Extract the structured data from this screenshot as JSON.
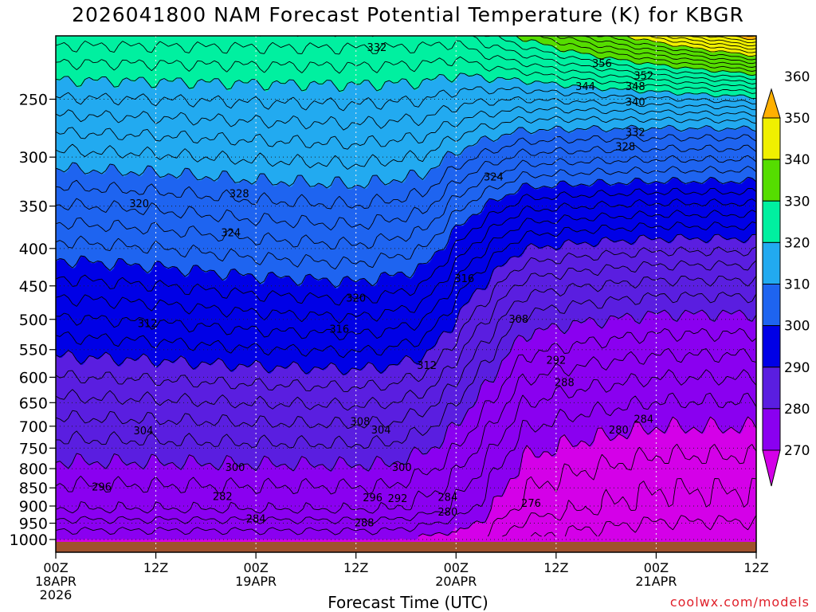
{
  "title": "2026041800 NAM Forecast Potential Temperature (K) for KBGR",
  "credit": "coolwx.com/models",
  "chart_data": {
    "type": "heatmap",
    "title": "2026041800 NAM Forecast Potential Temperature (K) for KBGR",
    "xlabel": "Forecast Time (UTC)",
    "ylabel": "",
    "x_ticks": [
      {
        "hour": 0,
        "labels": [
          "00Z",
          "18APR",
          "2026"
        ]
      },
      {
        "hour": 12,
        "labels": [
          "12Z"
        ]
      },
      {
        "hour": 24,
        "labels": [
          "00Z",
          "19APR"
        ]
      },
      {
        "hour": 36,
        "labels": [
          "12Z"
        ]
      },
      {
        "hour": 48,
        "labels": [
          "00Z",
          "20APR"
        ]
      },
      {
        "hour": 60,
        "labels": [
          "12Z"
        ]
      },
      {
        "hour": 72,
        "labels": [
          "00Z",
          "21APR"
        ]
      },
      {
        "hour": 84,
        "labels": [
          "12Z"
        ]
      }
    ],
    "xlim": [
      0,
      84
    ],
    "y_ticks": [
      250,
      300,
      350,
      400,
      450,
      500,
      550,
      600,
      650,
      700,
      750,
      800,
      850,
      900,
      950,
      1000
    ],
    "ylim": [
      1010,
      200
    ],
    "colorbar": {
      "levels": [
        270,
        280,
        290,
        300,
        310,
        320,
        330,
        340,
        350,
        360
      ],
      "colors": [
        "#d400e8",
        "#8a00f0",
        "#5a1ee0",
        "#0000e6",
        "#1e64f0",
        "#22aaf0",
        "#00f0a0",
        "#55dd00",
        "#f0f000",
        "#ffb000"
      ]
    },
    "contour_interval": 2,
    "contour_labels": [
      {
        "value": 332,
        "time": 38.5,
        "pressure": 212
      },
      {
        "value": 356,
        "time": 65.5,
        "pressure": 223
      },
      {
        "value": 352,
        "time": 70.5,
        "pressure": 232
      },
      {
        "value": 344,
        "time": 63.5,
        "pressure": 240
      },
      {
        "value": 348,
        "time": 69.5,
        "pressure": 240
      },
      {
        "value": 340,
        "time": 69.5,
        "pressure": 252
      },
      {
        "value": 332,
        "time": 69.5,
        "pressure": 277
      },
      {
        "value": 328,
        "time": 68.3,
        "pressure": 290
      },
      {
        "value": 324,
        "time": 52.5,
        "pressure": 319
      },
      {
        "value": 328,
        "time": 22.0,
        "pressure": 336
      },
      {
        "value": 320,
        "time": 10.0,
        "pressure": 347
      },
      {
        "value": 324,
        "time": 21.0,
        "pressure": 380
      },
      {
        "value": 316,
        "time": 49.0,
        "pressure": 439
      },
      {
        "value": 320,
        "time": 36.0,
        "pressure": 467
      },
      {
        "value": 308,
        "time": 55.5,
        "pressure": 499
      },
      {
        "value": 312,
        "time": 11.0,
        "pressure": 506
      },
      {
        "value": 316,
        "time": 34.0,
        "pressure": 515
      },
      {
        "value": 292,
        "time": 60.0,
        "pressure": 568
      },
      {
        "value": 312,
        "time": 44.5,
        "pressure": 577
      },
      {
        "value": 288,
        "time": 61.0,
        "pressure": 609
      },
      {
        "value": 284,
        "time": 70.5,
        "pressure": 684
      },
      {
        "value": 308,
        "time": 36.5,
        "pressure": 689
      },
      {
        "value": 304,
        "time": 10.5,
        "pressure": 709
      },
      {
        "value": 304,
        "time": 39.0,
        "pressure": 707
      },
      {
        "value": 280,
        "time": 67.5,
        "pressure": 707
      },
      {
        "value": 300,
        "time": 21.5,
        "pressure": 796
      },
      {
        "value": 300,
        "time": 41.5,
        "pressure": 796
      },
      {
        "value": 296,
        "time": 5.5,
        "pressure": 846
      },
      {
        "value": 282,
        "time": 20.0,
        "pressure": 872
      },
      {
        "value": 296,
        "time": 38.0,
        "pressure": 876
      },
      {
        "value": 292,
        "time": 41.0,
        "pressure": 878
      },
      {
        "value": 284,
        "time": 47.0,
        "pressure": 874
      },
      {
        "value": 276,
        "time": 57.0,
        "pressure": 891
      },
      {
        "value": 280,
        "time": 47.0,
        "pressure": 916
      },
      {
        "value": 284,
        "time": 24.0,
        "pressure": 936
      },
      {
        "value": 288,
        "time": 37.0,
        "pressure": 948
      }
    ],
    "grid": true,
    "legend": "right colorbar"
  }
}
